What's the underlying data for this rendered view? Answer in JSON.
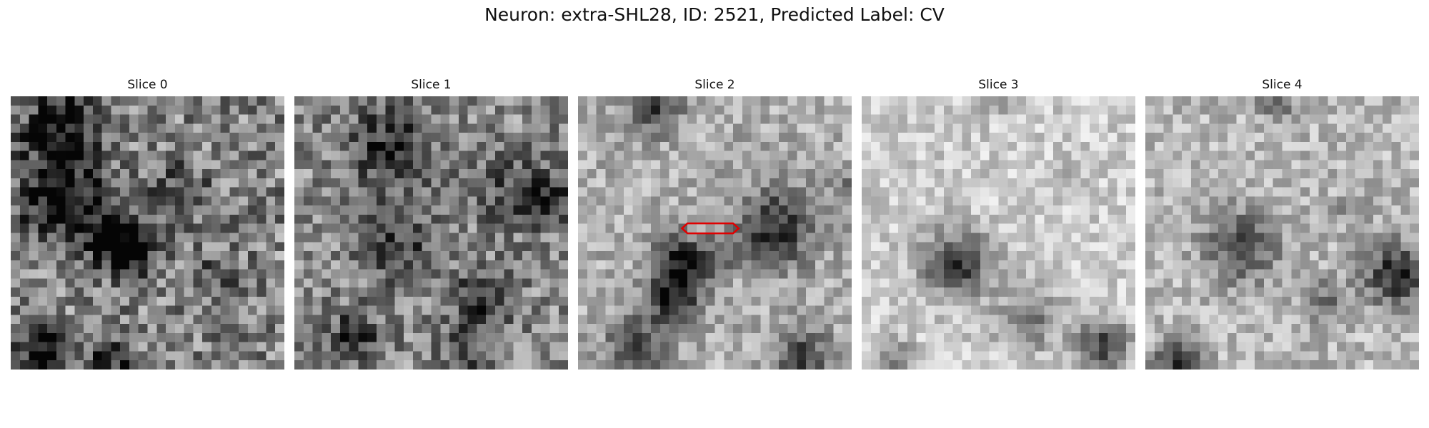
{
  "figure": {
    "title": "Neuron: extra-SHL28, ID: 2521, Predicted Label: CV"
  },
  "panels": [
    {
      "label": "Slice 0",
      "seed": 11,
      "blobs": [
        [
          3,
          5,
          3.0,
          -0.8
        ],
        [
          11,
          5,
          3.2,
          -0.9
        ],
        [
          15,
          11,
          2.5,
          -0.7
        ],
        [
          17,
          13,
          2.0,
          -0.6
        ],
        [
          10,
          18,
          2.5,
          -0.4
        ],
        [
          27,
          3,
          1.8,
          -0.9
        ],
        [
          29,
          10,
          2.0,
          -0.6
        ],
        [
          19,
          22,
          2.0,
          -0.3
        ]
      ]
    },
    {
      "label": "Slice 1",
      "seed": 23,
      "blobs": [
        [
          5,
          10,
          3.5,
          -0.6
        ],
        [
          16,
          11,
          3.0,
          -0.5
        ],
        [
          26,
          6,
          2.2,
          -0.6
        ],
        [
          22,
          20,
          2.4,
          -0.6
        ],
        [
          10,
          24,
          3.0,
          -0.5
        ],
        [
          28,
          18,
          2.0,
          -0.4
        ],
        [
          11,
          28,
          1.5,
          -0.6
        ]
      ]
    },
    {
      "label": "Slice 2",
      "seed": 37,
      "blobs": [
        [
          18,
          11,
          2.2,
          -0.95
        ],
        [
          22,
          10,
          2.0,
          -0.8
        ],
        [
          14,
          21,
          3.0,
          -0.85
        ],
        [
          1,
          8,
          1.8,
          -0.8
        ],
        [
          27,
          6,
          2.2,
          -0.7
        ],
        [
          28,
          24,
          2.2,
          -0.7
        ],
        [
          17,
          15,
          1.2,
          -0.3
        ],
        [
          10,
          29,
          1.5,
          -0.4
        ]
      ],
      "outline": {
        "center_row": 14.5,
        "center_col": 14.5,
        "half_width": 2.5,
        "half_height": 0.55
      }
    },
    {
      "label": "Slice 3",
      "seed": 51,
      "blobs": [
        [
          18,
          10,
          2.6,
          -1.0
        ],
        [
          24,
          18,
          2.4,
          -0.55
        ],
        [
          27,
          26,
          2.0,
          -0.9
        ],
        [
          0,
          14,
          1.2,
          -0.4
        ],
        [
          28,
          3,
          1.5,
          -0.5
        ],
        [
          9,
          22,
          1.5,
          -0.15
        ]
      ]
    },
    {
      "label": "Slice 4",
      "seed": 67,
      "blobs": [
        [
          16,
          10,
          2.8,
          -0.7
        ],
        [
          19,
          27,
          2.5,
          -0.95
        ],
        [
          29,
          3,
          1.8,
          -0.8
        ],
        [
          22,
          19,
          1.8,
          -0.45
        ],
        [
          0,
          14,
          1.5,
          -0.5
        ],
        [
          12,
          22,
          1.5,
          -0.2
        ]
      ]
    }
  ]
}
